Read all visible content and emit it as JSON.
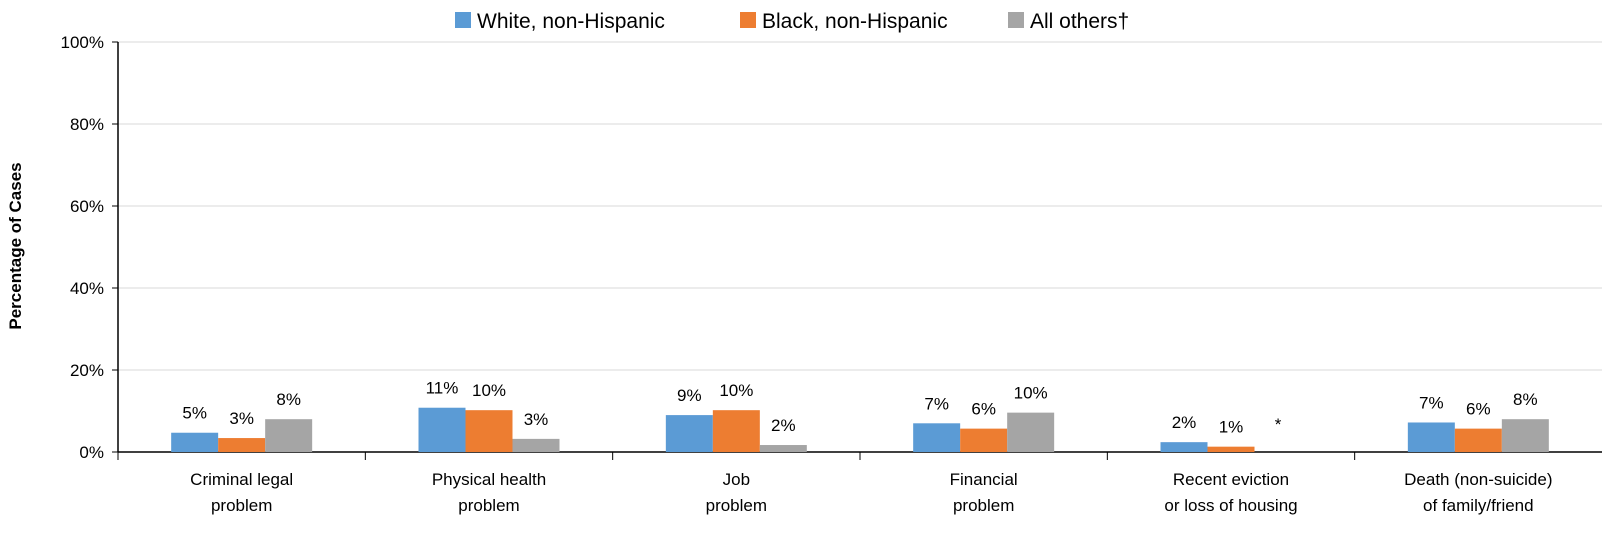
{
  "chart_data": {
    "type": "bar",
    "ylabel": "Percentage of Cases",
    "ylim": [
      0,
      100
    ],
    "yticks": [
      "0%",
      "20%",
      "40%",
      "60%",
      "80%",
      "100%"
    ],
    "grid": true,
    "legend_position": "top",
    "categories": [
      [
        "Criminal legal",
        "problem"
      ],
      [
        "Physical health",
        "problem"
      ],
      [
        "Job",
        "problem"
      ],
      [
        "Financial",
        "problem"
      ],
      [
        "Recent eviction",
        "or loss of housing"
      ],
      [
        "Death (non-suicide)",
        "of family/friend"
      ]
    ],
    "series": [
      {
        "name": "White, non-Hispanic",
        "color": "#5B9BD5",
        "values": [
          4.7,
          10.8,
          9.0,
          7.0,
          2.4,
          7.2
        ],
        "labels": [
          "5%",
          "11%",
          "9%",
          "7%",
          "2%",
          "7%"
        ]
      },
      {
        "name": "Black, non-Hispanic",
        "color": "#ED7D31",
        "values": [
          3.4,
          10.2,
          10.2,
          5.7,
          1.3,
          5.7
        ],
        "labels": [
          "3%",
          "10%",
          "10%",
          "6%",
          "1%",
          "6%"
        ]
      },
      {
        "name": "All others†",
        "color": "#A5A5A5",
        "values": [
          8.0,
          3.2,
          1.7,
          9.6,
          null,
          8.0
        ],
        "labels": [
          "8%",
          "3%",
          "2%",
          "10%",
          "*",
          "8%"
        ]
      }
    ]
  }
}
